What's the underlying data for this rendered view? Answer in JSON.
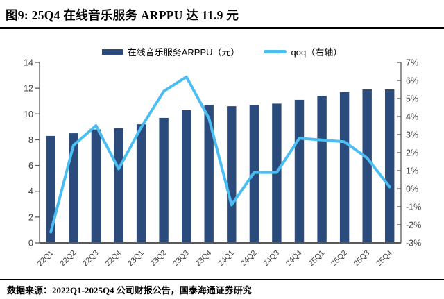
{
  "header": {
    "title": "图9:  25Q4 在线音乐服务 ARPPU 达 11.9 元"
  },
  "legend": [
    {
      "label": "在线音乐服务ARPPU（元）",
      "type": "bar",
      "color": "#2b4b7c"
    },
    {
      "label": "qoq（右轴）",
      "type": "line",
      "color": "#4abdf2"
    }
  ],
  "chart_data": {
    "type": "bar+line",
    "title": "25Q4 在线音乐服务 ARPPU 达 11.9 元",
    "categories": [
      "22Q1",
      "22Q2",
      "22Q3",
      "22Q4",
      "23Q1",
      "23Q2",
      "23Q3",
      "23Q4",
      "24Q1",
      "24Q2",
      "24Q3",
      "24Q4",
      "25Q1",
      "25Q2",
      "25Q3",
      "25Q4"
    ],
    "series": [
      {
        "name": "在线音乐服务ARPPU（元）",
        "type": "bar",
        "axis": "left",
        "color": "#2b4b7c",
        "values": [
          8.3,
          8.5,
          8.8,
          8.9,
          9.2,
          9.7,
          10.3,
          10.7,
          10.6,
          10.7,
          10.8,
          11.1,
          11.4,
          11.7,
          11.9,
          11.9
        ]
      },
      {
        "name": "qoq（右轴）",
        "type": "line",
        "axis": "right",
        "color": "#4abdf2",
        "unit": "%",
        "values": [
          -2.4,
          2.4,
          3.5,
          1.1,
          3.4,
          5.4,
          6.2,
          3.9,
          -0.9,
          0.9,
          0.9,
          2.8,
          2.7,
          2.6,
          1.7,
          0.1
        ]
      }
    ],
    "left_axis": {
      "min": 0,
      "max": 14,
      "tick_labels": [
        "0",
        "2",
        "4",
        "6",
        "8",
        "10",
        "12",
        "14"
      ]
    },
    "right_axis": {
      "min": -3,
      "max": 7,
      "tick_labels": [
        "-3%",
        "-2%",
        "-1%",
        "0%",
        "1%",
        "2%",
        "3%",
        "4%",
        "5%",
        "6%",
        "7%"
      ]
    },
    "grid": false,
    "legend_position": "top",
    "axis_color": "#595959",
    "tick_label_color": "#3d3d3d"
  },
  "footer": {
    "source": "数据来源：2022Q1-2025Q4 公司财报公告，国泰海通证券研究"
  }
}
